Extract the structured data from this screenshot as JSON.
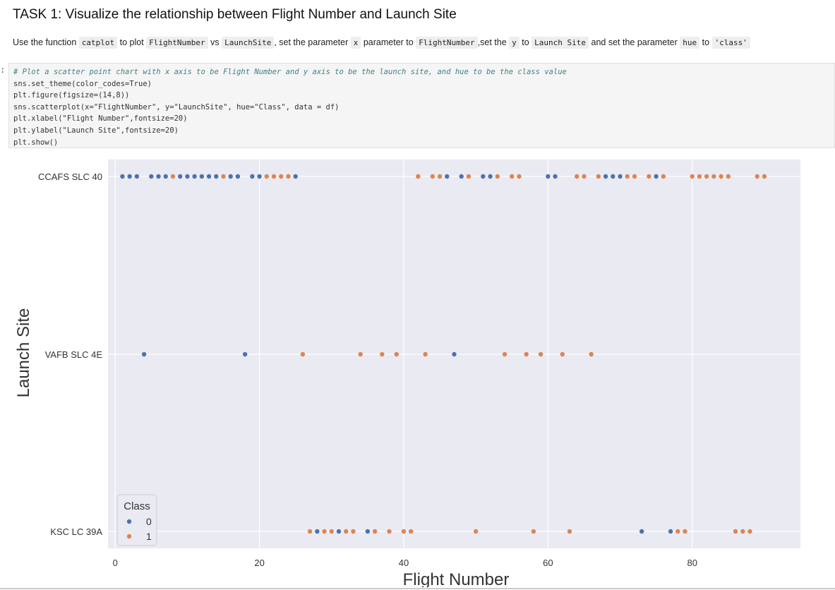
{
  "task": {
    "title": "TASK 1: Visualize the relationship between Flight Number and Launch Site",
    "desc": [
      {
        "t": "Use the function "
      },
      {
        "c": "catplot"
      },
      {
        "t": " to plot "
      },
      {
        "c": "FlightNumber"
      },
      {
        "t": " vs "
      },
      {
        "c": "LaunchSite"
      },
      {
        "t": ", set the parameter "
      },
      {
        "c": "x"
      },
      {
        "t": " parameter to "
      },
      {
        "c": "FlightNumber"
      },
      {
        "t": ",set the "
      },
      {
        "c": "y"
      },
      {
        "t": " to "
      },
      {
        "c": "Launch Site"
      },
      {
        "t": " and set the parameter "
      },
      {
        "c": "hue"
      },
      {
        "t": " to "
      },
      {
        "c": "'class'"
      }
    ]
  },
  "cell": {
    "prompt": ":",
    "lines": [
      "# Plot a scatter point chart with x axis to be Flight Number and y axis to be the launch site, and hue to be the class value",
      "sns.set_theme(color_codes=True)",
      "plt.figure(figsize=(14,8))",
      "sns.scatterplot(x=\"FlightNumber\", y=\"LaunchSite\", hue=\"Class\", data = df)",
      "plt.xlabel(\"Flight Number\",fontsize=20)",
      "plt.ylabel(\"Launch Site\",fontsize=20)",
      "plt.show()"
    ]
  },
  "chart_data": {
    "type": "scatter",
    "title": "",
    "xlabel": "Flight Number",
    "ylabel": "Launch Site",
    "xlim": [
      -1,
      95
    ],
    "x_ticks": [
      0,
      20,
      40,
      60,
      80
    ],
    "y_categories": [
      "CCAFS SLC 40",
      "VAFB SLC 4E",
      "KSC LC 39A"
    ],
    "grid": true,
    "legend": {
      "title": "Class",
      "placement": "lower-left",
      "entries": [
        "0",
        "1"
      ]
    },
    "colors": {
      "0": "#4c72b0",
      "1": "#dd8452",
      "plot_bg": "#eaeaf2",
      "grid": "#ffffff"
    },
    "series": [
      {
        "name": "0",
        "points": [
          {
            "x": 1,
            "y": "CCAFS SLC 40"
          },
          {
            "x": 2,
            "y": "CCAFS SLC 40"
          },
          {
            "x": 3,
            "y": "CCAFS SLC 40"
          },
          {
            "x": 5,
            "y": "CCAFS SLC 40"
          },
          {
            "x": 6,
            "y": "CCAFS SLC 40"
          },
          {
            "x": 7,
            "y": "CCAFS SLC 40"
          },
          {
            "x": 9,
            "y": "CCAFS SLC 40"
          },
          {
            "x": 10,
            "y": "CCAFS SLC 40"
          },
          {
            "x": 11,
            "y": "CCAFS SLC 40"
          },
          {
            "x": 12,
            "y": "CCAFS SLC 40"
          },
          {
            "x": 13,
            "y": "CCAFS SLC 40"
          },
          {
            "x": 14,
            "y": "CCAFS SLC 40"
          },
          {
            "x": 16,
            "y": "CCAFS SLC 40"
          },
          {
            "x": 17,
            "y": "CCAFS SLC 40"
          },
          {
            "x": 19,
            "y": "CCAFS SLC 40"
          },
          {
            "x": 20,
            "y": "CCAFS SLC 40"
          },
          {
            "x": 25,
            "y": "CCAFS SLC 40"
          },
          {
            "x": 46,
            "y": "CCAFS SLC 40"
          },
          {
            "x": 48,
            "y": "CCAFS SLC 40"
          },
          {
            "x": 51,
            "y": "CCAFS SLC 40"
          },
          {
            "x": 52,
            "y": "CCAFS SLC 40"
          },
          {
            "x": 60,
            "y": "CCAFS SLC 40"
          },
          {
            "x": 61,
            "y": "CCAFS SLC 40"
          },
          {
            "x": 68,
            "y": "CCAFS SLC 40"
          },
          {
            "x": 69,
            "y": "CCAFS SLC 40"
          },
          {
            "x": 70,
            "y": "CCAFS SLC 40"
          },
          {
            "x": 75,
            "y": "CCAFS SLC 40"
          },
          {
            "x": 4,
            "y": "VAFB SLC 4E"
          },
          {
            "x": 18,
            "y": "VAFB SLC 4E"
          },
          {
            "x": 47,
            "y": "VAFB SLC 4E"
          },
          {
            "x": 28,
            "y": "KSC LC 39A"
          },
          {
            "x": 31,
            "y": "KSC LC 39A"
          },
          {
            "x": 35,
            "y": "KSC LC 39A"
          },
          {
            "x": 73,
            "y": "KSC LC 39A"
          },
          {
            "x": 77,
            "y": "KSC LC 39A"
          }
        ]
      },
      {
        "name": "1",
        "points": [
          {
            "x": 8,
            "y": "CCAFS SLC 40"
          },
          {
            "x": 15,
            "y": "CCAFS SLC 40"
          },
          {
            "x": 21,
            "y": "CCAFS SLC 40"
          },
          {
            "x": 22,
            "y": "CCAFS SLC 40"
          },
          {
            "x": 23,
            "y": "CCAFS SLC 40"
          },
          {
            "x": 24,
            "y": "CCAFS SLC 40"
          },
          {
            "x": 42,
            "y": "CCAFS SLC 40"
          },
          {
            "x": 44,
            "y": "CCAFS SLC 40"
          },
          {
            "x": 45,
            "y": "CCAFS SLC 40"
          },
          {
            "x": 49,
            "y": "CCAFS SLC 40"
          },
          {
            "x": 53,
            "y": "CCAFS SLC 40"
          },
          {
            "x": 55,
            "y": "CCAFS SLC 40"
          },
          {
            "x": 56,
            "y": "CCAFS SLC 40"
          },
          {
            "x": 64,
            "y": "CCAFS SLC 40"
          },
          {
            "x": 65,
            "y": "CCAFS SLC 40"
          },
          {
            "x": 67,
            "y": "CCAFS SLC 40"
          },
          {
            "x": 71,
            "y": "CCAFS SLC 40"
          },
          {
            "x": 72,
            "y": "CCAFS SLC 40"
          },
          {
            "x": 74,
            "y": "CCAFS SLC 40"
          },
          {
            "x": 76,
            "y": "CCAFS SLC 40"
          },
          {
            "x": 80,
            "y": "CCAFS SLC 40"
          },
          {
            "x": 81,
            "y": "CCAFS SLC 40"
          },
          {
            "x": 82,
            "y": "CCAFS SLC 40"
          },
          {
            "x": 83,
            "y": "CCAFS SLC 40"
          },
          {
            "x": 84,
            "y": "CCAFS SLC 40"
          },
          {
            "x": 85,
            "y": "CCAFS SLC 40"
          },
          {
            "x": 89,
            "y": "CCAFS SLC 40"
          },
          {
            "x": 90,
            "y": "CCAFS SLC 40"
          },
          {
            "x": 26,
            "y": "VAFB SLC 4E"
          },
          {
            "x": 34,
            "y": "VAFB SLC 4E"
          },
          {
            "x": 37,
            "y": "VAFB SLC 4E"
          },
          {
            "x": 39,
            "y": "VAFB SLC 4E"
          },
          {
            "x": 43,
            "y": "VAFB SLC 4E"
          },
          {
            "x": 54,
            "y": "VAFB SLC 4E"
          },
          {
            "x": 57,
            "y": "VAFB SLC 4E"
          },
          {
            "x": 59,
            "y": "VAFB SLC 4E"
          },
          {
            "x": 62,
            "y": "VAFB SLC 4E"
          },
          {
            "x": 66,
            "y": "VAFB SLC 4E"
          },
          {
            "x": 27,
            "y": "KSC LC 39A"
          },
          {
            "x": 29,
            "y": "KSC LC 39A"
          },
          {
            "x": 30,
            "y": "KSC LC 39A"
          },
          {
            "x": 32,
            "y": "KSC LC 39A"
          },
          {
            "x": 33,
            "y": "KSC LC 39A"
          },
          {
            "x": 36,
            "y": "KSC LC 39A"
          },
          {
            "x": 38,
            "y": "KSC LC 39A"
          },
          {
            "x": 40,
            "y": "KSC LC 39A"
          },
          {
            "x": 41,
            "y": "KSC LC 39A"
          },
          {
            "x": 50,
            "y": "KSC LC 39A"
          },
          {
            "x": 58,
            "y": "KSC LC 39A"
          },
          {
            "x": 63,
            "y": "KSC LC 39A"
          },
          {
            "x": 78,
            "y": "KSC LC 39A"
          },
          {
            "x": 79,
            "y": "KSC LC 39A"
          },
          {
            "x": 86,
            "y": "KSC LC 39A"
          },
          {
            "x": 87,
            "y": "KSC LC 39A"
          },
          {
            "x": 88,
            "y": "KSC LC 39A"
          }
        ]
      }
    ]
  }
}
